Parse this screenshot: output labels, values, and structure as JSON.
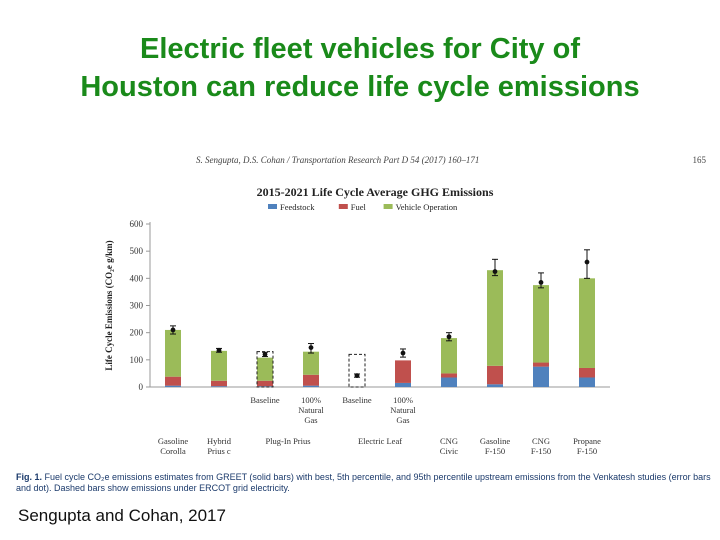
{
  "slide": {
    "title_line1": "Electric fleet vehicles for City of",
    "title_line2": "Houston can reduce life cycle emissions",
    "citation": "Sengupta and Cohan, 2017"
  },
  "figure": {
    "header": "S. Sengupta, D.S. Cohan / Transportation Research Part D 54 (2017) 160–171",
    "page_number": "165",
    "caption_label": "Fig. 1.",
    "caption_text": "Fuel cycle CO₂e emissions estimates from GREET (solid bars) with best, 5th percentile, and 95th percentile upstream emissions from the Venkatesh studies (error bars and dot). Dashed bars show emissions under ERCOT grid electricity."
  },
  "colors": {
    "feedstock": "#4f81bd",
    "fuel": "#c0504d",
    "vehicle_operation": "#9bbb59"
  },
  "chart_data": {
    "type": "bar",
    "stacked": true,
    "title": "2015-2021 Life Cycle Average GHG Emissions",
    "ylabel": "Life Cycle Emissions (CO₂e g/km)",
    "ylim": [
      0,
      600
    ],
    "yticks": [
      0,
      100,
      200,
      300,
      400,
      500,
      600
    ],
    "legend": [
      "Feedstock",
      "Fuel",
      "Vehicle Operation"
    ],
    "categories": [
      "",
      "",
      "Baseline",
      "100% Natural Gas",
      "Baseline",
      "100% Natural Gas",
      "",
      "",
      "",
      ""
    ],
    "groups": [
      {
        "label": "Gasoline Corolla",
        "bars": [
          0
        ]
      },
      {
        "label": "Hybrid Prius c",
        "bars": [
          1
        ]
      },
      {
        "label": "Plug-In Prius",
        "bars": [
          2,
          3
        ]
      },
      {
        "label": "Electric Leaf",
        "bars": [
          4,
          5
        ]
      },
      {
        "label": "CNG Civic",
        "bars": [
          6
        ]
      },
      {
        "label": "Gasoline F-150",
        "bars": [
          7
        ]
      },
      {
        "label": "CNG F-150",
        "bars": [
          8
        ]
      },
      {
        "label": "Propane F-150",
        "bars": [
          9
        ]
      }
    ],
    "series": [
      {
        "name": "Feedstock",
        "values": [
          5,
          3,
          3,
          5,
          0,
          15,
          35,
          10,
          75,
          35
        ]
      },
      {
        "name": "Fuel",
        "values": [
          33,
          20,
          20,
          40,
          0,
          83,
          15,
          68,
          15,
          35
        ]
      },
      {
        "name": "Vehicle Operation",
        "values": [
          172,
          110,
          85,
          85,
          0,
          0,
          130,
          352,
          285,
          330
        ]
      }
    ],
    "dashed_bars": [
      {
        "bar": 2,
        "value": 130
      },
      {
        "bar": 4,
        "value": 120
      }
    ],
    "error_points": [
      {
        "bar": 0,
        "best": 210,
        "low": 195,
        "high": 225
      },
      {
        "bar": 1,
        "best": 135,
        "low": 128,
        "high": 142
      },
      {
        "bar": 2,
        "best": 120,
        "low": 112,
        "high": 128
      },
      {
        "bar": 3,
        "best": 145,
        "low": 125,
        "high": 160
      },
      {
        "bar": 4,
        "best": 42,
        "low": 36,
        "high": 48
      },
      {
        "bar": 5,
        "best": 125,
        "low": 110,
        "high": 140
      },
      {
        "bar": 6,
        "best": 185,
        "low": 170,
        "high": 200
      },
      {
        "bar": 7,
        "best": 425,
        "low": 410,
        "high": 470
      },
      {
        "bar": 8,
        "best": 385,
        "low": 365,
        "high": 420
      },
      {
        "bar": 9,
        "best": 460,
        "low": 400,
        "high": 505
      }
    ]
  }
}
